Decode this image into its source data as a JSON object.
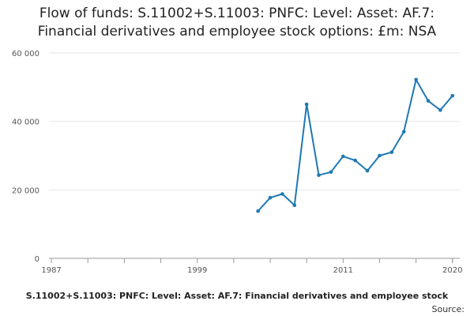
{
  "chart_data": {
    "type": "line",
    "title_lines": [
      "Flow of funds: S.11002+S.11003: PNFC: Level: Asset: AF.7:",
      "Financial derivatives and employee stock options: £m: NSA"
    ],
    "xlabel": "",
    "ylabel": "",
    "xlim": [
      1986.8,
      2020.6
    ],
    "ylim": [
      0,
      60000
    ],
    "x_ticks": [
      1987,
      1999,
      2011,
      2020
    ],
    "x_tick_labels": [
      "1987",
      "1999",
      "2011",
      "2020"
    ],
    "y_ticks": [
      0,
      20000,
      40000,
      60000
    ],
    "y_tick_labels": [
      "0",
      "20 000",
      "40 000",
      "60 000"
    ],
    "grid": true,
    "legend_text": "S.11002+S.11003: PNFC: Level: Asset: AF.7: Financial derivatives and employee stock",
    "source_text": "Source:",
    "series": [
      {
        "color": "#1f78b4",
        "x": [
          2004,
          2005,
          2006,
          2007,
          2008,
          2009,
          2010,
          2011,
          2012,
          2013,
          2014,
          2015,
          2016,
          2017,
          2018,
          2019,
          2020
        ],
        "values": [
          13800,
          17700,
          18800,
          15500,
          45000,
          24300,
          25200,
          29800,
          28600,
          25600,
          30000,
          31000,
          37000,
          52200,
          46000,
          43300,
          47500
        ]
      }
    ]
  }
}
